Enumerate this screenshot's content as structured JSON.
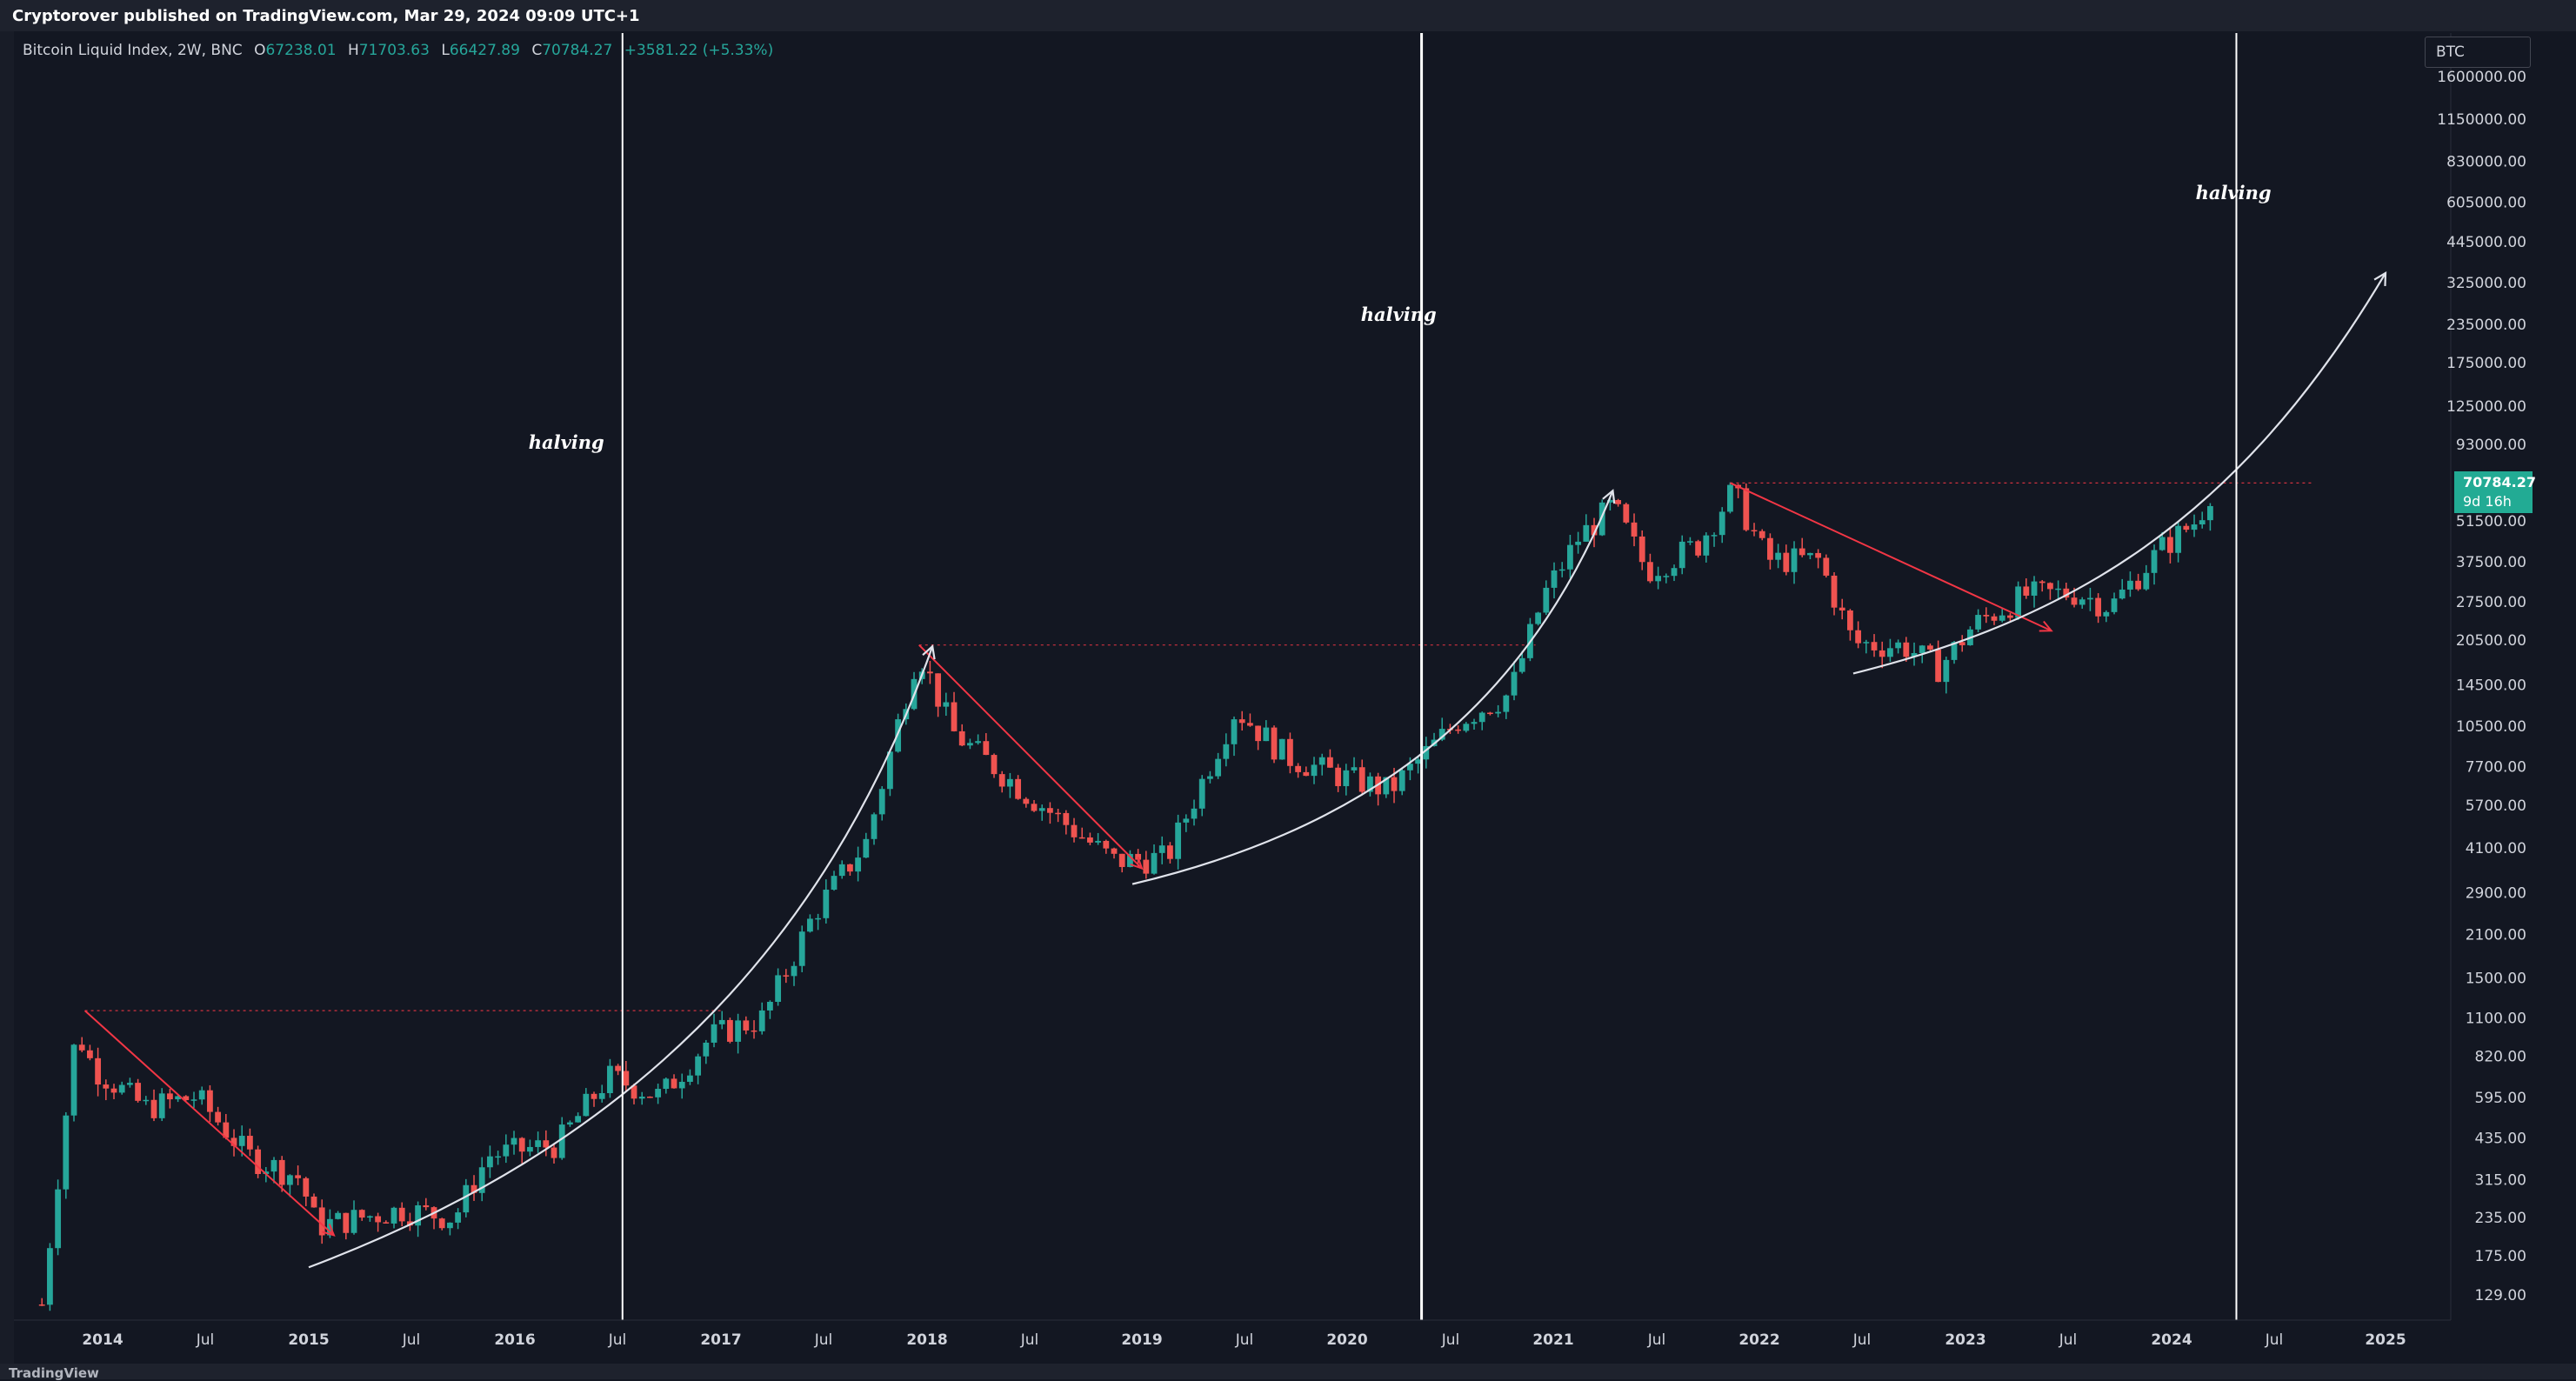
{
  "header": {
    "publisher_line": "Cryptorover published on TradingView.com, Mar 29, 2024 09:09 UTC+1"
  },
  "legend": {
    "symbol": "Bitcoin Liquid Index, 2W, BNC",
    "open_label": "O",
    "open": "67238.01",
    "high_label": "H",
    "high": "71703.63",
    "low_label": "L",
    "low": "66427.89",
    "close_label": "C",
    "close": "70784.27",
    "change": "+3581.22 (+5.33%)"
  },
  "axis_selector": {
    "label": "BTC"
  },
  "price_badge": {
    "price": "70784.27",
    "countdown": "9d 16h"
  },
  "footer": {
    "brand": "TradingView"
  },
  "colors": {
    "up": "#26a69a",
    "down": "#ef5350",
    "background": "#131722",
    "badge": "#22ab94",
    "trend": "#f23645",
    "curve": "#e0e3eb"
  },
  "chart_data": {
    "type": "candlestick",
    "title": "Bitcoin Liquid Index, 2W, BNC",
    "scale": "log",
    "y_ticks": [
      "1600000.00",
      "1150000.00",
      "830000.00",
      "605000.00",
      "445000.00",
      "325000.00",
      "235000.00",
      "175000.00",
      "125000.00",
      "93000.00",
      "70784.27",
      "51500.00",
      "37500.00",
      "27500.00",
      "20500.00",
      "14500.00",
      "10500.00",
      "7700.00",
      "5700.00",
      "4100.00",
      "2900.00",
      "2100.00",
      "1500.00",
      "1100.00",
      "820.00",
      "595.00",
      "435.00",
      "315.00",
      "235.00",
      "175.00",
      "129.00"
    ],
    "x_ticks": [
      {
        "label": "2014",
        "year": true
      },
      {
        "label": "Jul",
        "year": false
      },
      {
        "label": "2015",
        "year": true
      },
      {
        "label": "Jul",
        "year": false
      },
      {
        "label": "2016",
        "year": true
      },
      {
        "label": "Jul",
        "year": false
      },
      {
        "label": "2017",
        "year": true
      },
      {
        "label": "Jul",
        "year": false
      },
      {
        "label": "2018",
        "year": true
      },
      {
        "label": "Jul",
        "year": false
      },
      {
        "label": "2019",
        "year": true
      },
      {
        "label": "Jul",
        "year": false
      },
      {
        "label": "2020",
        "year": true
      },
      {
        "label": "Jul",
        "year": false
      },
      {
        "label": "2021",
        "year": true
      },
      {
        "label": "Jul",
        "year": false
      },
      {
        "label": "2022",
        "year": true
      },
      {
        "label": "Jul",
        "year": false
      },
      {
        "label": "2023",
        "year": true
      },
      {
        "label": "Jul",
        "year": false
      },
      {
        "label": "2024",
        "year": true
      },
      {
        "label": "Jul",
        "year": false
      },
      {
        "label": "2025",
        "year": true
      }
    ],
    "annotations": [
      {
        "text": "halving",
        "x": "2016-04-01",
        "y": 90000
      },
      {
        "text": "halving",
        "x": "2020-04-01",
        "y": 242000
      },
      {
        "text": "halving",
        "x": "2024-04-15",
        "y": 620000
      }
    ],
    "halving_lines": [
      "2016-07-09",
      "2020-05-11",
      "2024-04-20"
    ],
    "horizontal_levels": [
      {
        "price": 1165,
        "from": "2013-11-30",
        "to": "2017-01-01"
      },
      {
        "price": 19700,
        "from": "2017-12-17",
        "to": "2020-11-30"
      },
      {
        "price": 69000,
        "from": "2021-11-10",
        "to": "2024-09-01"
      }
    ],
    "trend_lines": [
      {
        "from": {
          "x": "2013-11-30",
          "y": 1165
        },
        "to": {
          "x": "2015-02-15",
          "y": 205
        }
      },
      {
        "from": {
          "x": "2017-12-17",
          "y": 19700
        },
        "to": {
          "x": "2018-12-31",
          "y": 3500
        }
      },
      {
        "from": {
          "x": "2021-11-10",
          "y": 69000
        },
        "to": {
          "x": "2023-06-01",
          "y": 22000
        }
      }
    ],
    "curves": [
      {
        "points": [
          {
            "x": "2015-01-01",
            "y": 160
          },
          {
            "x": "2016-07-09",
            "y": 400
          },
          {
            "x": "2017-07-01",
            "y": 1800
          },
          {
            "x": "2018-01-10",
            "y": 19500
          }
        ]
      },
      {
        "points": [
          {
            "x": "2018-12-15",
            "y": 3100
          },
          {
            "x": "2020-01-01",
            "y": 4600
          },
          {
            "x": "2020-11-01",
            "y": 10500
          },
          {
            "x": "2021-04-15",
            "y": 65000
          }
        ]
      },
      {
        "points": [
          {
            "x": "2022-06-15",
            "y": 15800
          },
          {
            "x": "2023-07-01",
            "y": 24000
          },
          {
            "x": "2024-04-20",
            "y": 50000
          },
          {
            "x": "2025-01-01",
            "y": 350000
          }
        ]
      }
    ],
    "candles_series": [
      {
        "date": "2013-09",
        "close": 120
      },
      {
        "date": "2013-11",
        "close": 1000
      },
      {
        "date": "2013-12",
        "close": 750
      },
      {
        "date": "2014-03",
        "close": 550
      },
      {
        "date": "2014-06",
        "close": 600
      },
      {
        "date": "2014-09",
        "close": 380
      },
      {
        "date": "2014-12",
        "close": 320
      },
      {
        "date": "2015-01",
        "close": 220
      },
      {
        "date": "2015-06",
        "close": 250
      },
      {
        "date": "2015-09",
        "close": 235
      },
      {
        "date": "2015-11",
        "close": 380
      },
      {
        "date": "2016-03",
        "close": 415
      },
      {
        "date": "2016-06",
        "close": 700
      },
      {
        "date": "2016-09",
        "close": 600
      },
      {
        "date": "2016-12",
        "close": 960
      },
      {
        "date": "2017-03",
        "close": 1100
      },
      {
        "date": "2017-06",
        "close": 2500
      },
      {
        "date": "2017-09",
        "close": 4300
      },
      {
        "date": "2017-12",
        "close": 19000
      },
      {
        "date": "2018-02",
        "close": 10000
      },
      {
        "date": "2018-06",
        "close": 6300
      },
      {
        "date": "2018-11",
        "close": 3700
      },
      {
        "date": "2019-02",
        "close": 3800
      },
      {
        "date": "2019-06",
        "close": 12000
      },
      {
        "date": "2019-09",
        "close": 8300
      },
      {
        "date": "2019-12",
        "close": 7200
      },
      {
        "date": "2020-03",
        "close": 6400
      },
      {
        "date": "2020-07",
        "close": 11000
      },
      {
        "date": "2020-10",
        "close": 13500
      },
      {
        "date": "2020-12",
        "close": 29000
      },
      {
        "date": "2021-02",
        "close": 45000
      },
      {
        "date": "2021-04",
        "close": 58000
      },
      {
        "date": "2021-06",
        "close": 35000
      },
      {
        "date": "2021-09",
        "close": 43000
      },
      {
        "date": "2021-11",
        "close": 65000
      },
      {
        "date": "2022-01",
        "close": 38000
      },
      {
        "date": "2022-04",
        "close": 38000
      },
      {
        "date": "2022-06",
        "close": 20000
      },
      {
        "date": "2022-09",
        "close": 19500
      },
      {
        "date": "2022-11",
        "close": 16500
      },
      {
        "date": "2023-01",
        "close": 23000
      },
      {
        "date": "2023-04",
        "close": 29000
      },
      {
        "date": "2023-07",
        "close": 29500
      },
      {
        "date": "2023-09",
        "close": 26500
      },
      {
        "date": "2023-12",
        "close": 42000
      },
      {
        "date": "2024-02",
        "close": 52000
      },
      {
        "date": "2024-03",
        "close": 70784
      }
    ]
  }
}
